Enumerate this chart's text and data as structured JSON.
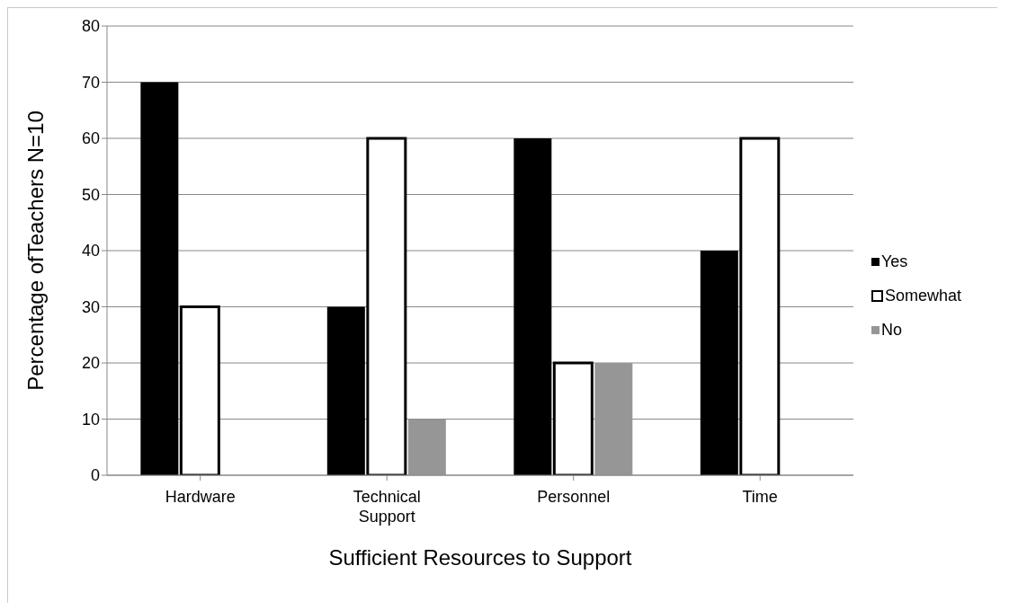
{
  "chart_data": {
    "type": "bar",
    "xlabel": "Sufficient Resources to Support",
    "ylabel": "Percentage ofTeachers N=10",
    "categories": [
      "Hardware",
      "Technical\nSupport",
      "Personnel",
      "Time"
    ],
    "series": [
      {
        "name": "Yes",
        "color": "#000000",
        "values": [
          70,
          30,
          60,
          40
        ]
      },
      {
        "name": "Somewhat",
        "color": "#ffffff",
        "values": [
          30,
          60,
          20,
          60
        ]
      },
      {
        "name": "No",
        "color": "#969696",
        "values": [
          0,
          10,
          20,
          0
        ]
      }
    ],
    "ylim": [
      0,
      80
    ],
    "yticks": [
      0,
      10,
      20,
      30,
      40,
      50,
      60,
      70,
      80
    ],
    "grid": "y",
    "legend": "right"
  }
}
